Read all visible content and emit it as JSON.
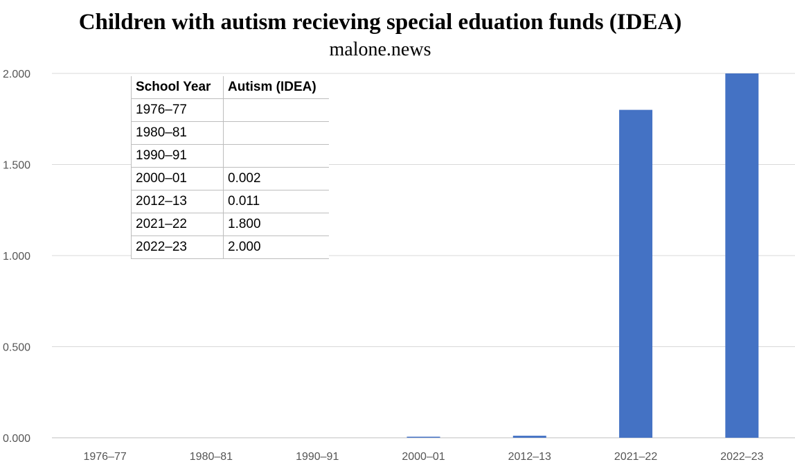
{
  "chart_data": {
    "type": "bar",
    "title": "Children with autism recieving special eduation funds (IDEA)",
    "subtitle": "malone.news",
    "categories": [
      "1976–77",
      "1980–81",
      "1990–91",
      "2000–01",
      "2012–13",
      "2021–22",
      "2022–23"
    ],
    "values": [
      0,
      0,
      0,
      0.002,
      0.011,
      1.8,
      2.0
    ],
    "ylim": [
      0,
      2.0
    ],
    "yticks": [
      "0.000",
      "0.500",
      "1.000",
      "1.500",
      "2.000"
    ],
    "ytick_values": [
      0,
      0.5,
      1.0,
      1.5,
      2.0
    ],
    "grid": true,
    "bar_color": "#4472C4",
    "gridline_color": "#d9d9d9"
  },
  "table": {
    "headers": [
      "School Year",
      "Autism (IDEA)"
    ],
    "rows": [
      [
        "1976–77",
        ""
      ],
      [
        "1980–81",
        ""
      ],
      [
        "1990–91",
        ""
      ],
      [
        "2000–01",
        "0.002"
      ],
      [
        "2012–13",
        "0.011"
      ],
      [
        "2021–22",
        "1.800"
      ],
      [
        "2022–23",
        "2.000"
      ]
    ]
  }
}
